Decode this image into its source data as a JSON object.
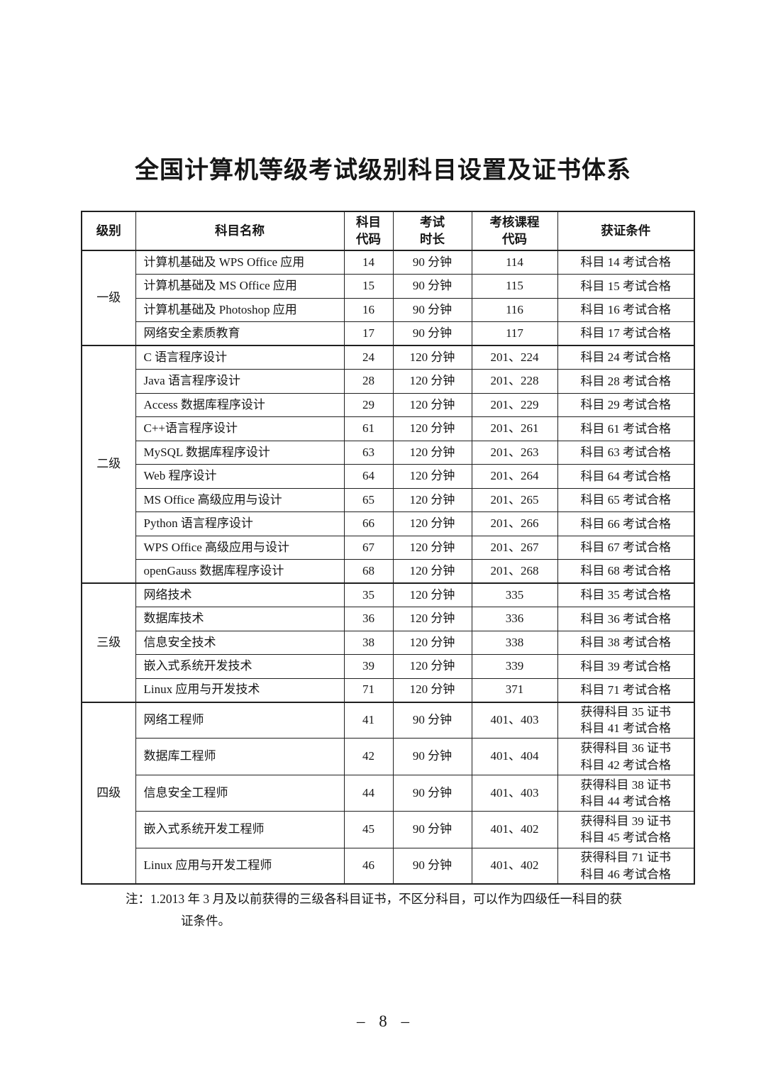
{
  "doc": {
    "title": "全国计算机等级考试级别科目设置及证书体系",
    "note": {
      "line1": "注：1.2013 年 3 月及以前获得的三级各科目证书，不区分科目，可以作为四级任一科目的获",
      "line2": "证条件。"
    },
    "page_number": "– 8 –"
  },
  "table": {
    "headers": [
      "级别",
      "科目名称",
      "科目\n代码",
      "考试\n时长",
      "考核课程\n代码",
      "获证条件"
    ],
    "groups": [
      {
        "level": "一级",
        "rows": [
          {
            "name": "计算机基础及 WPS Office 应用",
            "code": "14",
            "duration": "90 分钟",
            "courses": "114",
            "cert": "科目 14 考试合格"
          },
          {
            "name": "计算机基础及 MS Office 应用",
            "code": "15",
            "duration": "90 分钟",
            "courses": "115",
            "cert": "科目 15 考试合格"
          },
          {
            "name": "计算机基础及 Photoshop 应用",
            "code": "16",
            "duration": "90 分钟",
            "courses": "116",
            "cert": "科目 16 考试合格"
          },
          {
            "name": "网络安全素质教育",
            "code": "17",
            "duration": "90 分钟",
            "courses": "117",
            "cert": "科目 17 考试合格"
          }
        ]
      },
      {
        "level": "二级",
        "rows": [
          {
            "name": "C 语言程序设计",
            "code": "24",
            "duration": "120 分钟",
            "courses": "201、224",
            "cert": "科目 24 考试合格"
          },
          {
            "name": "Java 语言程序设计",
            "code": "28",
            "duration": "120 分钟",
            "courses": "201、228",
            "cert": "科目 28 考试合格"
          },
          {
            "name": "Access 数据库程序设计",
            "code": "29",
            "duration": "120 分钟",
            "courses": "201、229",
            "cert": "科目 29 考试合格"
          },
          {
            "name": "C++语言程序设计",
            "code": "61",
            "duration": "120 分钟",
            "courses": "201、261",
            "cert": "科目 61 考试合格"
          },
          {
            "name": "MySQL 数据库程序设计",
            "code": "63",
            "duration": "120 分钟",
            "courses": "201、263",
            "cert": "科目 63 考试合格"
          },
          {
            "name": "Web 程序设计",
            "code": "64",
            "duration": "120 分钟",
            "courses": "201、264",
            "cert": "科目 64 考试合格"
          },
          {
            "name": "MS Office 高级应用与设计",
            "code": "65",
            "duration": "120 分钟",
            "courses": "201、265",
            "cert": "科目 65 考试合格"
          },
          {
            "name": "Python 语言程序设计",
            "code": "66",
            "duration": "120 分钟",
            "courses": "201、266",
            "cert": "科目 66 考试合格"
          },
          {
            "name": "WPS Office 高级应用与设计",
            "code": "67",
            "duration": "120 分钟",
            "courses": "201、267",
            "cert": "科目 67 考试合格"
          },
          {
            "name": "openGauss 数据库程序设计",
            "code": "68",
            "duration": "120 分钟",
            "courses": "201、268",
            "cert": "科目 68 考试合格"
          }
        ]
      },
      {
        "level": "三级",
        "rows": [
          {
            "name": "网络技术",
            "code": "35",
            "duration": "120 分钟",
            "courses": "335",
            "cert": "科目 35 考试合格"
          },
          {
            "name": "数据库技术",
            "code": "36",
            "duration": "120 分钟",
            "courses": "336",
            "cert": "科目 36 考试合格"
          },
          {
            "name": "信息安全技术",
            "code": "38",
            "duration": "120 分钟",
            "courses": "338",
            "cert": "科目 38 考试合格"
          },
          {
            "name": "嵌入式系统开发技术",
            "code": "39",
            "duration": "120 分钟",
            "courses": "339",
            "cert": "科目 39 考试合格"
          },
          {
            "name": "Linux 应用与开发技术",
            "code": "71",
            "duration": "120 分钟",
            "courses": "371",
            "cert": "科目 71 考试合格"
          }
        ]
      },
      {
        "level": "四级",
        "rows": [
          {
            "name": "网络工程师",
            "code": "41",
            "duration": "90 分钟",
            "courses": "401、403",
            "cert": "获得科目 35 证书\n科目 41 考试合格"
          },
          {
            "name": "数据库工程师",
            "code": "42",
            "duration": "90 分钟",
            "courses": "401、404",
            "cert": "获得科目 36 证书\n科目 42 考试合格"
          },
          {
            "name": "信息安全工程师",
            "code": "44",
            "duration": "90 分钟",
            "courses": "401、403",
            "cert": "获得科目 38 证书\n科目 44 考试合格"
          },
          {
            "name": "嵌入式系统开发工程师",
            "code": "45",
            "duration": "90 分钟",
            "courses": "401、402",
            "cert": "获得科目 39 证书\n科目 45 考试合格"
          },
          {
            "name": "Linux 应用与开发工程师",
            "code": "46",
            "duration": "90 分钟",
            "courses": "401、402",
            "cert": "获得科目 71 证书\n科目 46 考试合格"
          }
        ]
      }
    ]
  }
}
